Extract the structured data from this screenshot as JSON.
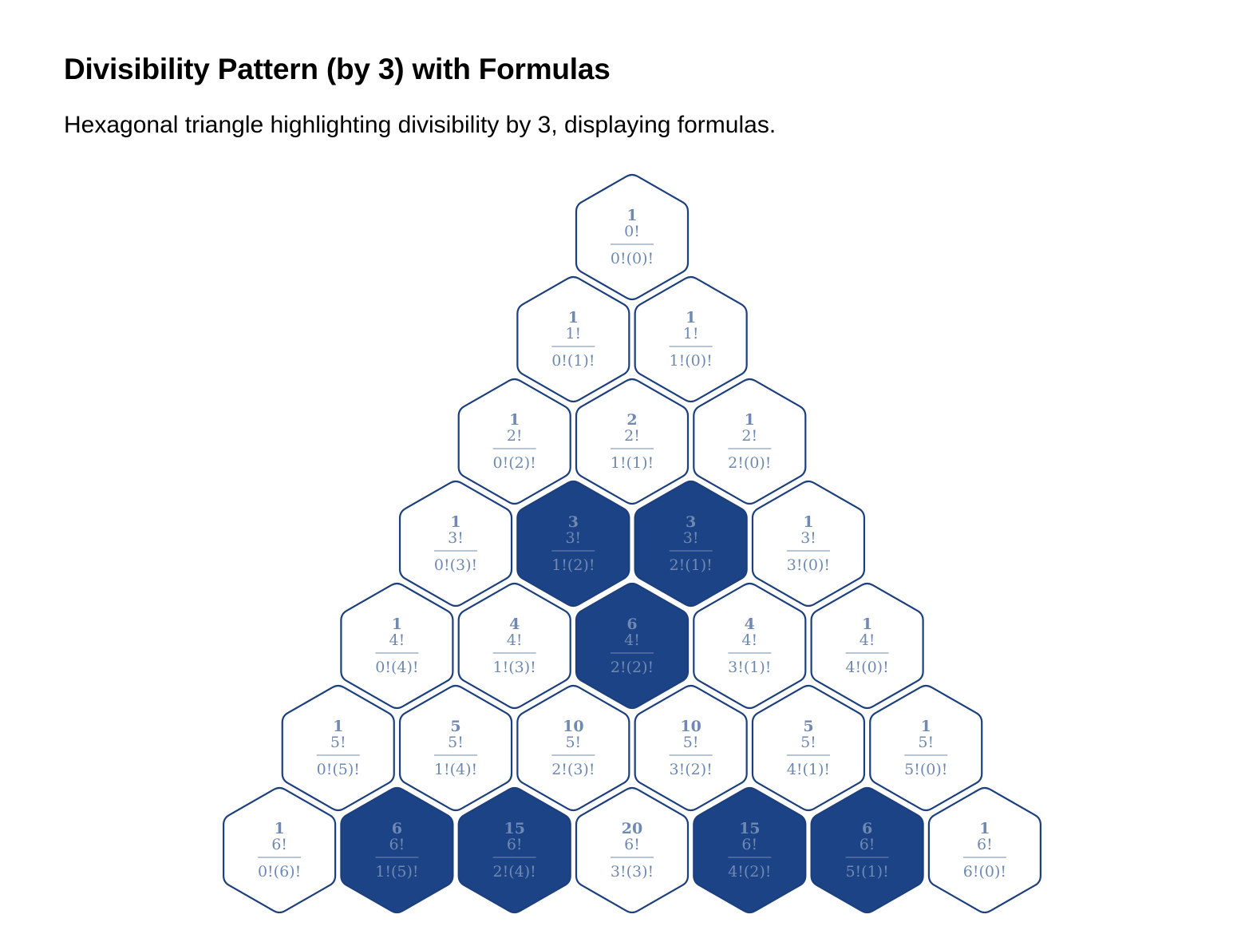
{
  "title": "Divisibility Pattern (by 3) with Formulas",
  "subtitle": "Hexagonal triangle highlighting divisibility by 3, displaying formulas.",
  "colors": {
    "stroke": "#1c3f7d",
    "highlight_fill": "#1c4385",
    "plain_fill": "#ffffff",
    "text": "#6f89b2"
  },
  "diagram": {
    "rows": [
      [
        {
          "value": "1",
          "numerator": "0!",
          "denominator": "0!(0)!",
          "divisible": false
        }
      ],
      [
        {
          "value": "1",
          "numerator": "1!",
          "denominator": "0!(1)!",
          "divisible": false
        },
        {
          "value": "1",
          "numerator": "1!",
          "denominator": "1!(0)!",
          "divisible": false
        }
      ],
      [
        {
          "value": "1",
          "numerator": "2!",
          "denominator": "0!(2)!",
          "divisible": false
        },
        {
          "value": "2",
          "numerator": "2!",
          "denominator": "1!(1)!",
          "divisible": false
        },
        {
          "value": "1",
          "numerator": "2!",
          "denominator": "2!(0)!",
          "divisible": false
        }
      ],
      [
        {
          "value": "1",
          "numerator": "3!",
          "denominator": "0!(3)!",
          "divisible": false
        },
        {
          "value": "3",
          "numerator": "3!",
          "denominator": "1!(2)!",
          "divisible": true
        },
        {
          "value": "3",
          "numerator": "3!",
          "denominator": "2!(1)!",
          "divisible": true
        },
        {
          "value": "1",
          "numerator": "3!",
          "denominator": "3!(0)!",
          "divisible": false
        }
      ],
      [
        {
          "value": "1",
          "numerator": "4!",
          "denominator": "0!(4)!",
          "divisible": false
        },
        {
          "value": "4",
          "numerator": "4!",
          "denominator": "1!(3)!",
          "divisible": false
        },
        {
          "value": "6",
          "numerator": "4!",
          "denominator": "2!(2)!",
          "divisible": true
        },
        {
          "value": "4",
          "numerator": "4!",
          "denominator": "3!(1)!",
          "divisible": false
        },
        {
          "value": "1",
          "numerator": "4!",
          "denominator": "4!(0)!",
          "divisible": false
        }
      ],
      [
        {
          "value": "1",
          "numerator": "5!",
          "denominator": "0!(5)!",
          "divisible": false
        },
        {
          "value": "5",
          "numerator": "5!",
          "denominator": "1!(4)!",
          "divisible": false
        },
        {
          "value": "10",
          "numerator": "5!",
          "denominator": "2!(3)!",
          "divisible": false
        },
        {
          "value": "10",
          "numerator": "5!",
          "denominator": "3!(2)!",
          "divisible": false
        },
        {
          "value": "5",
          "numerator": "5!",
          "denominator": "4!(1)!",
          "divisible": false
        },
        {
          "value": "1",
          "numerator": "5!",
          "denominator": "5!(0)!",
          "divisible": false
        }
      ],
      [
        {
          "value": "1",
          "numerator": "6!",
          "denominator": "0!(6)!",
          "divisible": false
        },
        {
          "value": "6",
          "numerator": "6!",
          "denominator": "1!(5)!",
          "divisible": true
        },
        {
          "value": "15",
          "numerator": "6!",
          "denominator": "2!(4)!",
          "divisible": true
        },
        {
          "value": "20",
          "numerator": "6!",
          "denominator": "3!(3)!",
          "divisible": false
        },
        {
          "value": "15",
          "numerator": "6!",
          "denominator": "4!(2)!",
          "divisible": true
        },
        {
          "value": "6",
          "numerator": "6!",
          "denominator": "5!(1)!",
          "divisible": true
        },
        {
          "value": "1",
          "numerator": "6!",
          "denominator": "6!(0)!",
          "divisible": false
        }
      ]
    ]
  }
}
